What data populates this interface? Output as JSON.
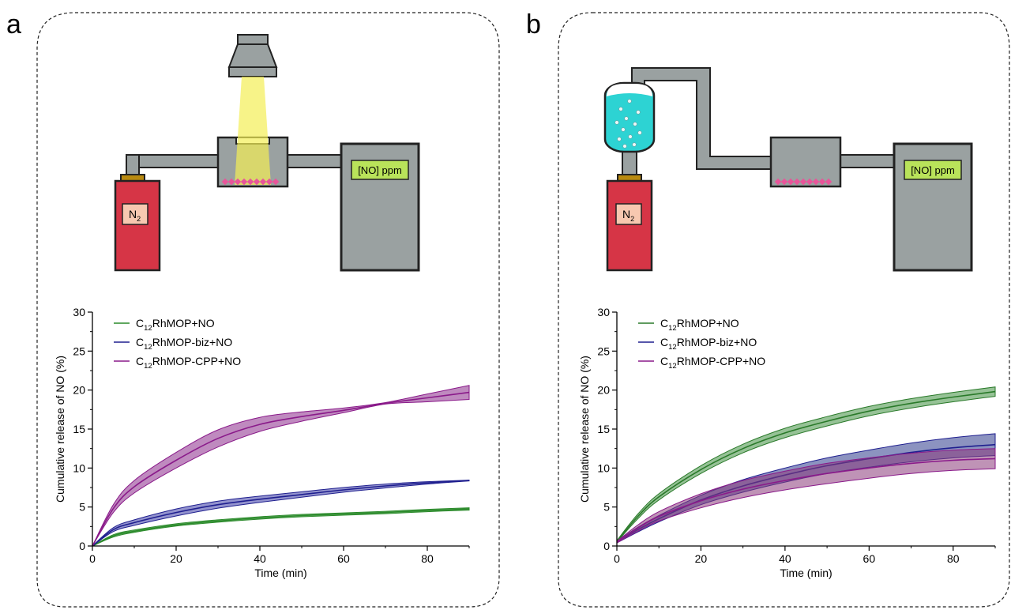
{
  "panels": [
    {
      "letter": "a",
      "gas_label": "N",
      "gas_sub": "2",
      "detector_label": "[NO] ppm"
    },
    {
      "letter": "b",
      "gas_label": "N",
      "gas_sub": "2",
      "detector_label": "[NO] ppm"
    }
  ],
  "colors": {
    "cylinder": "#d63546",
    "gas_box": "#f7c8b0",
    "device": "#9aa1a1",
    "detector_display": "#b9e35a",
    "light_beam": "#f4ee55",
    "liquid": "#2dd3d3",
    "sample": "#e8559a",
    "valve": "#b98a0f"
  },
  "chart_data": [
    {
      "type": "line",
      "title": "",
      "xlabel": "Time (min)",
      "ylabel": "Cumulative release of NO (%)",
      "xlim": [
        0,
        90
      ],
      "ylim": [
        0,
        30
      ],
      "xticks": [
        0,
        20,
        40,
        60,
        80
      ],
      "yticks": [
        0,
        5,
        10,
        15,
        20,
        25,
        30
      ],
      "legend": "top-left",
      "series": [
        {
          "name_main": "C",
          "name_sub": "12",
          "name_rest": "RhMOP+NO",
          "color": "#2a8a2a",
          "band": "#2a8a2a",
          "x": [
            0,
            5,
            10,
            20,
            30,
            40,
            50,
            60,
            70,
            80,
            90
          ],
          "y": [
            0,
            1.3,
            1.9,
            2.7,
            3.2,
            3.6,
            3.9,
            4.1,
            4.3,
            4.55,
            4.75
          ],
          "err": [
            0,
            0.15,
            0.15,
            0.15,
            0.15,
            0.15,
            0.15,
            0.15,
            0.15,
            0.15,
            0.15
          ]
        },
        {
          "name_main": "C",
          "name_sub": "12",
          "name_rest": "RhMOP-biz+NO",
          "color": "#1f1f8f",
          "band": "#3a3aa5",
          "x": [
            0,
            5,
            10,
            20,
            30,
            40,
            50,
            60,
            70,
            80,
            90
          ],
          "y": [
            0,
            2.1,
            3.0,
            4.3,
            5.3,
            6.0,
            6.6,
            7.2,
            7.7,
            8.1,
            8.4
          ],
          "err": [
            0,
            0.25,
            0.35,
            0.45,
            0.45,
            0.4,
            0.35,
            0.3,
            0.25,
            0.15,
            0.05
          ]
        },
        {
          "name_main": "C",
          "name_sub": "12",
          "name_rest": "RhMOP-CPP+NO",
          "color": "#8a1a8a",
          "band": "#8a2a8a",
          "x": [
            0,
            5,
            10,
            20,
            30,
            40,
            50,
            60,
            70,
            80,
            90
          ],
          "y": [
            0,
            4.8,
            7.6,
            11.0,
            13.8,
            15.6,
            16.6,
            17.4,
            18.3,
            19.0,
            19.7
          ],
          "err": [
            0,
            0.5,
            0.8,
            1.0,
            1.1,
            0.9,
            0.6,
            0.3,
            0.1,
            0.5,
            0.9
          ]
        }
      ]
    },
    {
      "type": "line",
      "title": "",
      "xlabel": "Time (min)",
      "ylabel": "Cumulative release of NO (%)",
      "xlim": [
        0,
        90
      ],
      "ylim": [
        0,
        30
      ],
      "xticks": [
        0,
        20,
        40,
        60,
        80
      ],
      "yticks": [
        0,
        5,
        10,
        15,
        20,
        25,
        30
      ],
      "legend": "top-left",
      "series": [
        {
          "name_main": "C",
          "name_sub": "12",
          "name_rest": "RhMOP+NO",
          "color": "#2a7a2a",
          "band": "#3f8f3f",
          "x": [
            0,
            5,
            10,
            20,
            30,
            40,
            50,
            60,
            70,
            80,
            90
          ],
          "y": [
            0.6,
            3.8,
            6.3,
            9.8,
            12.5,
            14.5,
            16.0,
            17.3,
            18.3,
            19.1,
            19.8
          ],
          "err": [
            0.1,
            0.3,
            0.4,
            0.5,
            0.55,
            0.6,
            0.6,
            0.6,
            0.6,
            0.6,
            0.6
          ]
        },
        {
          "name_main": "C",
          "name_sub": "12",
          "name_rest": "RhMOP-biz+NO",
          "color": "#1f1f8f",
          "band": "#2e3a8c",
          "x": [
            0,
            5,
            10,
            20,
            30,
            40,
            50,
            60,
            70,
            80,
            90
          ],
          "y": [
            0.5,
            2.1,
            3.5,
            5.9,
            7.7,
            9.1,
            10.3,
            11.2,
            12.0,
            12.6,
            13.0
          ],
          "err": [
            0.1,
            0.3,
            0.4,
            0.6,
            0.8,
            0.9,
            1.0,
            1.1,
            1.2,
            1.3,
            1.4
          ]
        },
        {
          "name_main": "C",
          "name_sub": "12",
          "name_rest": "RhMOP-CPP+NO",
          "color": "#8a1a8a",
          "band": "#8a3a7a",
          "x": [
            0,
            5,
            10,
            20,
            30,
            40,
            50,
            60,
            70,
            80,
            90
          ],
          "y": [
            0.5,
            2.3,
            3.8,
            5.8,
            7.3,
            8.4,
            9.3,
            10.0,
            10.6,
            11.0,
            11.2
          ],
          "err": [
            0.1,
            0.4,
            0.6,
            0.9,
            1.1,
            1.2,
            1.3,
            1.3,
            1.3,
            1.3,
            1.3
          ]
        }
      ]
    }
  ]
}
